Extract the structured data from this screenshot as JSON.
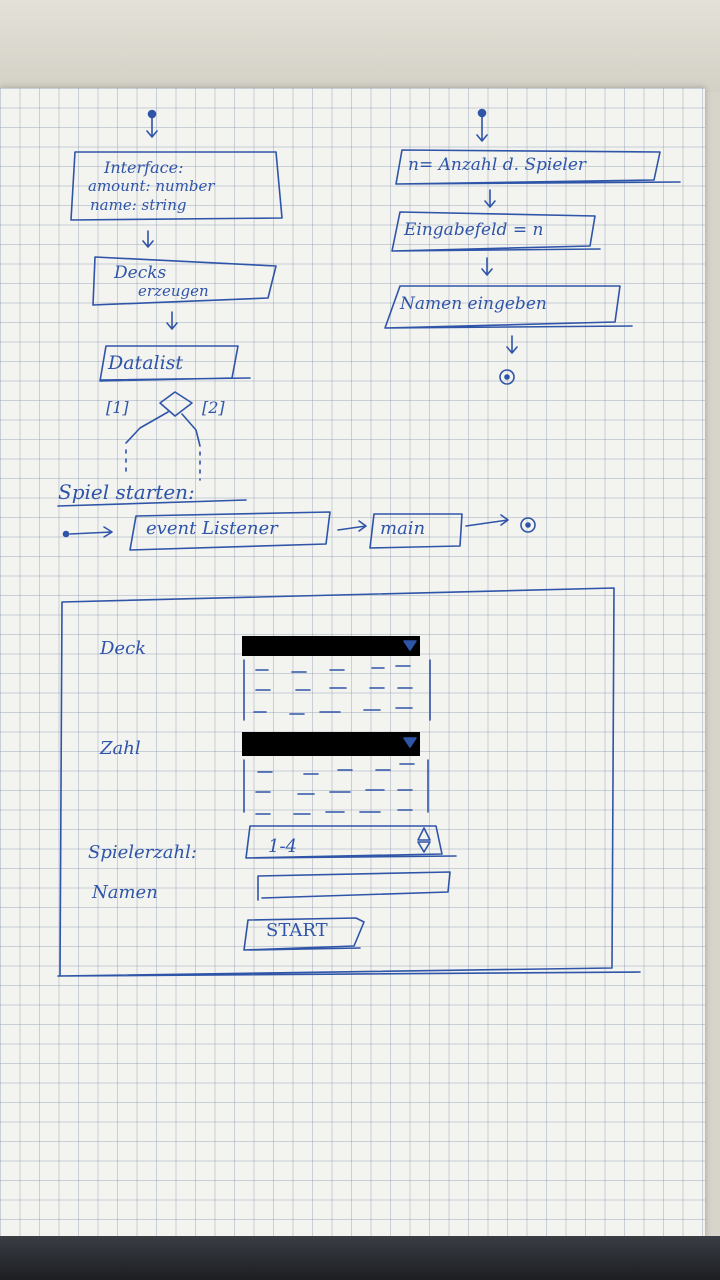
{
  "flow_left": {
    "interface_title": "Interface:",
    "interface_line1": "amount: number",
    "interface_line2": "name: string",
    "decks_line1": "Decks",
    "decks_line2": "erzeugen",
    "datalist": "Datalist",
    "branch_left": "[1]",
    "branch_right": "[2]"
  },
  "flow_right": {
    "players": "n= Anzahl d. Spieler",
    "input_field": "Eingabefeld = n",
    "names": "Namen eingeben"
  },
  "start_flow": {
    "heading": "Spiel starten:",
    "listener": "event Listener",
    "main": "main"
  },
  "mockup": {
    "deck_label": "Deck",
    "zahl_label": "Zahl",
    "players_label": "Spielerzahl:",
    "players_value": "1-4",
    "names_label": "Namen",
    "start_button": "START"
  },
  "colors": {
    "ink": "#2f55a8",
    "paper": "#f3f3f0",
    "grid": "#8ca0b9"
  }
}
